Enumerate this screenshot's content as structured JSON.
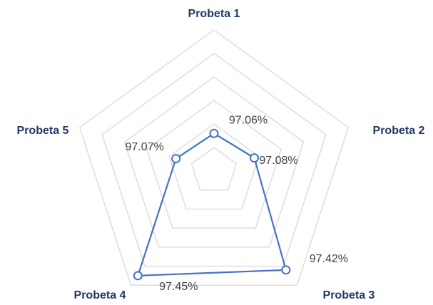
{
  "chart_data": {
    "type": "radar",
    "categories": [
      "Probeta 1",
      "Probeta 2",
      "Probeta 3",
      "Probeta 4",
      "Probeta 5"
    ],
    "series": [
      {
        "color": "#4472c4",
        "values": [
          97.06,
          97.08,
          97.42,
          97.45,
          97.07
        ],
        "value_labels": [
          "97.06%",
          "97.08%",
          "97.42%",
          "97.45%",
          "97.07%"
        ]
      }
    ],
    "ylim": [
      96.9,
      97.5
    ],
    "yticks": [
      96.9,
      97.0,
      97.1,
      97.2,
      97.3,
      97.4,
      97.5
    ],
    "grid": true
  }
}
